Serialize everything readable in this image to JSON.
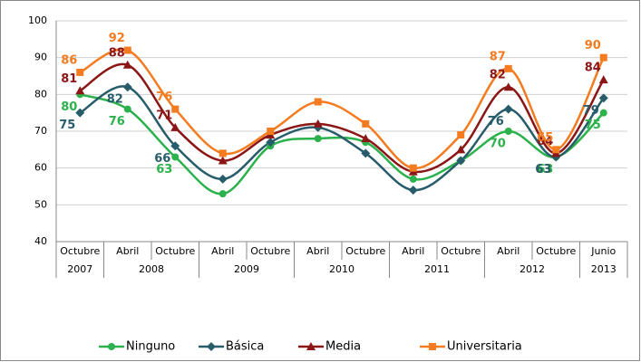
{
  "chart_data": {
    "type": "line",
    "categories": [
      "Octubre",
      "Abril",
      "Octubre",
      "Abril",
      "Octubre",
      "Abril",
      "Octubre",
      "Abril",
      "Octubre",
      "Abril",
      "Octubre",
      "Junio"
    ],
    "category_groups": [
      {
        "name": "2007",
        "count": 1
      },
      {
        "name": "2008",
        "count": 2
      },
      {
        "name": "2009",
        "count": 2
      },
      {
        "name": "2010",
        "count": 2
      },
      {
        "name": "2011",
        "count": 2
      },
      {
        "name": "2012",
        "count": 2
      },
      {
        "name": "2013",
        "count": 1
      }
    ],
    "ylim": [
      40,
      100
    ],
    "yticks": [
      40,
      50,
      60,
      70,
      80,
      90,
      100
    ],
    "grid": true,
    "smooth": true,
    "legend": "bottom",
    "series": [
      {
        "name": "Ninguno",
        "color": "#2bb24c",
        "marker": "circle",
        "values": [
          80,
          76,
          63,
          53,
          66,
          68,
          67,
          57,
          62,
          70,
          63,
          75
        ],
        "value_labels": [
          "80",
          "76",
          "63",
          null,
          null,
          null,
          null,
          null,
          null,
          "70",
          "63",
          "75"
        ]
      },
      {
        "name": "Básica",
        "color": "#275c6b",
        "marker": "diamond",
        "values": [
          75,
          82,
          66,
          57,
          67,
          71,
          64,
          54,
          62,
          76,
          63,
          79
        ],
        "value_labels": [
          "75",
          "82",
          "66",
          null,
          null,
          null,
          null,
          null,
          null,
          "76",
          "63",
          "79"
        ]
      },
      {
        "name": "Media",
        "color": "#8b1616",
        "marker": "triangle",
        "values": [
          81,
          88,
          71,
          62,
          69,
          72,
          68,
          59,
          65,
          82,
          64,
          84
        ],
        "value_labels": [
          "81",
          "88",
          "71",
          null,
          null,
          null,
          null,
          null,
          null,
          "82",
          "64",
          "84"
        ]
      },
      {
        "name": "Universitaria",
        "color": "#f47b20",
        "marker": "square",
        "values": [
          86,
          92,
          76,
          64,
          70,
          78,
          72,
          60,
          69,
          87,
          65,
          90
        ],
        "value_labels": [
          "86",
          "92",
          "76",
          null,
          null,
          null,
          null,
          null,
          null,
          "87",
          "65",
          "90"
        ]
      }
    ]
  }
}
